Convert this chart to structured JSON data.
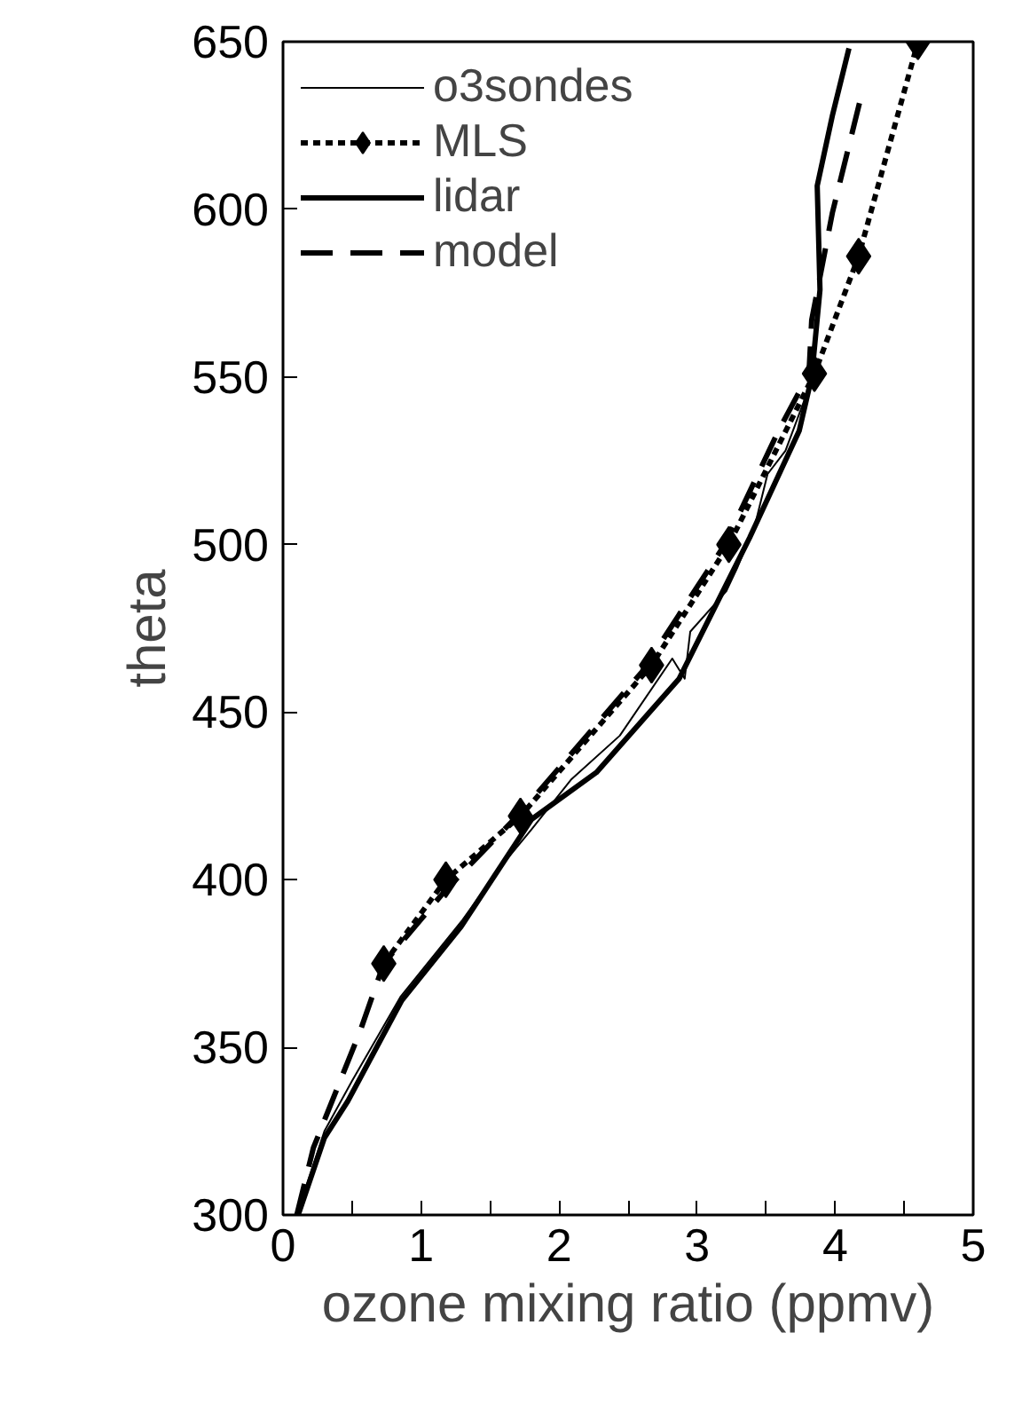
{
  "chart_data": {
    "type": "line",
    "xlabel": "ozone mixing ratio (ppmv)",
    "ylabel": "theta",
    "xlim": [
      0,
      5
    ],
    "ylim": [
      300,
      650
    ],
    "xticks": [
      0,
      {
        "value": 0.5,
        "label": null
      },
      1,
      {
        "value": 1.5,
        "label": null
      },
      2,
      {
        "value": 2.5,
        "label": null
      },
      3,
      {
        "value": 3.5,
        "label": null
      },
      4,
      {
        "value": 4.5,
        "label": null
      },
      5
    ],
    "yticks": [
      300,
      350,
      400,
      450,
      500,
      550,
      600,
      650
    ],
    "grid": false,
    "legend": "top left",
    "series": [
      {
        "name": "o3sondes",
        "color": "#000000",
        "line_style": "solid",
        "marker": "none",
        "x": [
          0.1,
          0.3,
          0.5,
          0.85,
          1.3,
          1.58,
          1.8,
          2.09,
          2.44,
          2.82,
          2.91,
          2.95,
          3.21,
          3.29,
          3.42,
          3.51,
          3.64,
          3.84
        ],
        "values": [
          300,
          325,
          340,
          365,
          388,
          404,
          415,
          430,
          443,
          466,
          460,
          474,
          486,
          493,
          506,
          521,
          528,
          550
        ]
      },
      {
        "name": "MLS",
        "color": "#000000",
        "line_style": "dotted",
        "marker": "diamond",
        "x": [
          0.73,
          1.18,
          1.72,
          2.67,
          3.23,
          3.85,
          4.17,
          4.6
        ],
        "values": [
          375,
          400,
          419,
          464,
          500,
          551,
          586,
          650
        ]
      },
      {
        "name": "lidar",
        "color": "#000000",
        "line_style": "solid",
        "marker": "none",
        "x": [
          0.11,
          0.3,
          0.47,
          0.86,
          1.29,
          1.8,
          2.27,
          2.87,
          3.38,
          3.74,
          3.83,
          3.89,
          3.87,
          3.98,
          4.1
        ],
        "values": [
          300,
          323,
          334,
          364,
          386,
          418,
          432,
          460,
          502,
          534,
          550,
          576,
          607,
          628,
          648
        ]
      },
      {
        "name": "model",
        "color": "#000000",
        "line_style": "dashed",
        "marker": "none",
        "x": [
          0.1,
          0.22,
          0.56,
          0.73,
          1.18,
          1.72,
          2.6,
          3.2,
          3.59,
          3.81,
          3.83,
          3.98,
          4.19
        ],
        "values": [
          300,
          320,
          355,
          375,
          397,
          420,
          462,
          500,
          534,
          551,
          567,
          599,
          634
        ]
      }
    ]
  }
}
